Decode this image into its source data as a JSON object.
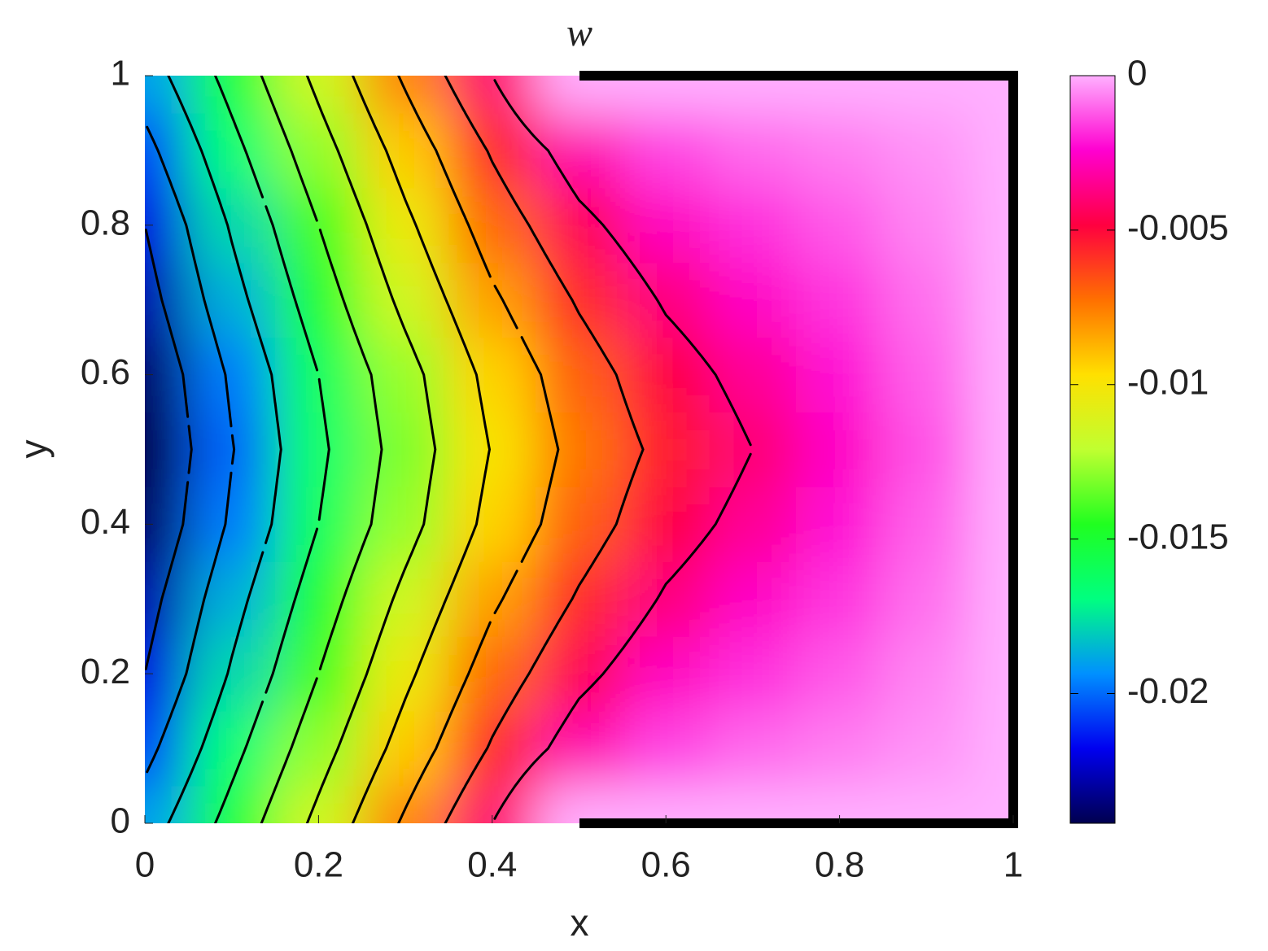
{
  "chart_data": {
    "type": "contour",
    "title": "w",
    "xlabel": "x",
    "ylabel": "y",
    "x": [
      0,
      0.1,
      0.2,
      0.3,
      0.4,
      0.5,
      0.6,
      0.7,
      0.8,
      0.9,
      1
    ],
    "y": [
      0,
      0.1,
      0.2,
      0.3,
      0.4,
      0.5,
      0.6,
      0.7,
      0.8,
      0.9,
      1
    ],
    "z": [
      [
        -0.019,
        -0.0153,
        -0.0115,
        -0.0077,
        -0.004,
        0,
        0,
        0,
        0,
        0,
        0
      ],
      [
        -0.0206,
        -0.0166,
        -0.0128,
        -0.0092,
        -0.0058,
        -0.003,
        -0.0015,
        -0.001,
        -0.0007,
        -0.0004,
        0
      ],
      [
        -0.022,
        -0.0178,
        -0.014,
        -0.0104,
        -0.0071,
        -0.0045,
        -0.0027,
        -0.0018,
        -0.0012,
        -0.0006,
        0
      ],
      [
        -0.0228,
        -0.0187,
        -0.015,
        -0.0115,
        -0.0083,
        -0.0058,
        -0.0038,
        -0.0026,
        -0.0017,
        -0.0009,
        0
      ],
      [
        -0.0238,
        -0.0197,
        -0.016,
        -0.0127,
        -0.0094,
        -0.0069,
        -0.0048,
        -0.0034,
        -0.0022,
        -0.0011,
        0
      ],
      [
        -0.0242,
        -0.0201,
        -0.0164,
        -0.0131,
        -0.0099,
        -0.0074,
        -0.0055,
        -0.004,
        -0.0026,
        -0.0013,
        0
      ],
      [
        -0.0238,
        -0.0197,
        -0.016,
        -0.0127,
        -0.0094,
        -0.0069,
        -0.0048,
        -0.0034,
        -0.0022,
        -0.0011,
        0
      ],
      [
        -0.0228,
        -0.0187,
        -0.015,
        -0.0115,
        -0.0083,
        -0.0058,
        -0.0038,
        -0.0026,
        -0.0017,
        -0.0009,
        0
      ],
      [
        -0.022,
        -0.0178,
        -0.014,
        -0.0104,
        -0.0071,
        -0.0045,
        -0.0027,
        -0.0018,
        -0.0012,
        -0.0006,
        0
      ],
      [
        -0.0206,
        -0.0166,
        -0.0128,
        -0.0092,
        -0.0058,
        -0.003,
        -0.0015,
        -0.001,
        -0.0007,
        -0.0004,
        0
      ],
      [
        -0.019,
        -0.0153,
        -0.0115,
        -0.0077,
        -0.004,
        0,
        0,
        0,
        0,
        0,
        0
      ]
    ],
    "contour_levels": [
      -0.022,
      -0.02,
      -0.018,
      -0.016,
      -0.014,
      -0.012,
      -0.01,
      -0.008,
      -0.006,
      -0.004
    ],
    "contour_color": "#000000",
    "colormap": [
      "#00004f",
      "#0000f0",
      "#0090ff",
      "#00ff80",
      "#20ff20",
      "#c0ff30",
      "#ffe000",
      "#ff7000",
      "#ff0040",
      "#ff00d0",
      "#ffb0ff"
    ],
    "clim": [
      -0.0242,
      0
    ],
    "cticks": [
      0,
      -0.005,
      -0.01,
      -0.015,
      -0.02
    ],
    "xlim": [
      0,
      1
    ],
    "ylim": [
      0,
      1
    ],
    "xticks": [
      0,
      0.2,
      0.4,
      0.6,
      0.8,
      1
    ],
    "yticks": [
      0,
      0.2,
      0.4,
      0.6,
      0.8,
      1
    ]
  }
}
